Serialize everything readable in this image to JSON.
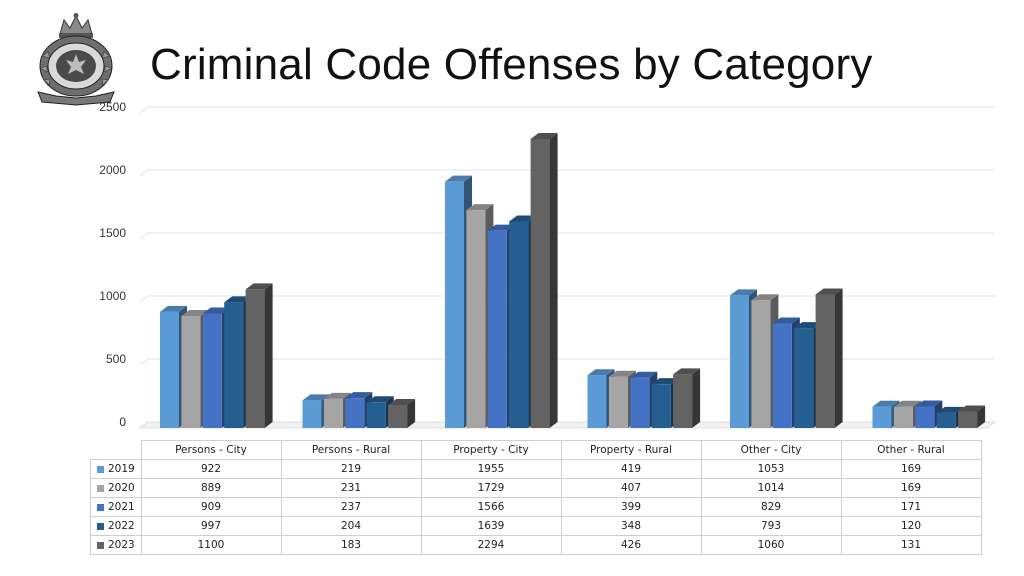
{
  "title": "Criminal Code Offenses by Category",
  "logo": {
    "icon": "rcmp-crest-icon"
  },
  "chart_data": {
    "type": "bar",
    "title": "Criminal Code Offenses by Category",
    "categories": [
      "Persons - City",
      "Persons - Rural",
      "Property - City",
      "Property - Rural",
      "Other - City",
      "Other - Rural"
    ],
    "series": [
      {
        "name": "2019",
        "color": "#5b9bd5",
        "values": [
          922,
          219,
          1955,
          419,
          1053,
          169
        ]
      },
      {
        "name": "2020",
        "color": "#a5a5a5",
        "values": [
          889,
          231,
          1729,
          407,
          1014,
          169
        ]
      },
      {
        "name": "2021",
        "color": "#4472c4",
        "values": [
          909,
          237,
          1566,
          399,
          829,
          171
        ]
      },
      {
        "name": "2022",
        "color": "#255e91",
        "values": [
          997,
          204,
          1639,
          348,
          793,
          120
        ]
      },
      {
        "name": "2023",
        "color": "#636363",
        "values": [
          1100,
          183,
          2294,
          426,
          1060,
          131
        ]
      }
    ],
    "ylim": [
      0,
      2500
    ],
    "yticks": [
      0,
      500,
      1000,
      1500,
      2000,
      2500
    ],
    "grid": true,
    "data_table": true,
    "style": "3d-clustered-column"
  }
}
